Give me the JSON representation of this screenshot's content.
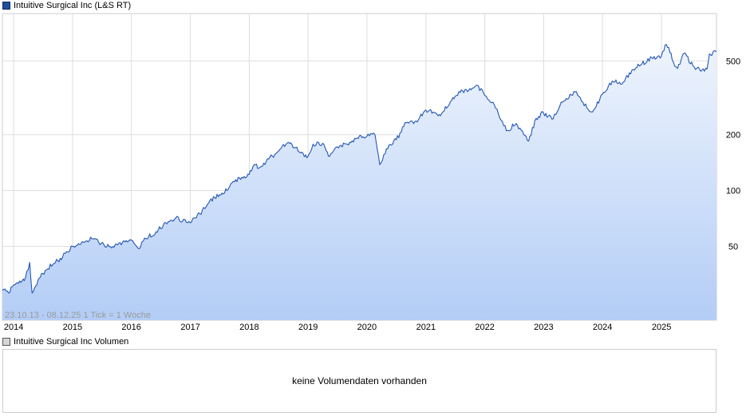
{
  "legend": {
    "main_label": "Intuitive Surgical Inc (L&S RT)",
    "volume_label": "Intuitive Surgical Inc Volumen"
  },
  "range_text": "23.10.13 - 08.12.25   1 Tick = 1 Woche",
  "volume": {
    "message": "keine Volumendaten vorhanden"
  },
  "colors": {
    "line": "#2457b3",
    "fill_top": "#eef4fd",
    "fill_bottom": "#b3cdf6",
    "grid": "#dddddd"
  },
  "chart_data": {
    "type": "area",
    "scale": "log",
    "title": "Intuitive Surgical Inc (L&S RT)",
    "period": "23.10.13 - 08.12.25",
    "tick": "1 Tick = 1 Woche",
    "x_ticks": [
      "2014",
      "2015",
      "2016",
      "2017",
      "2018",
      "2019",
      "2020",
      "2021",
      "2022",
      "2023",
      "2024",
      "2025"
    ],
    "y_ticks": [
      50,
      100,
      200,
      500
    ],
    "ylim": [
      20,
      900
    ],
    "grid": true,
    "series": [
      {
        "name": "Intuitive Surgical Inc (L&S RT)",
        "points": [
          [
            "2013-10-23",
            29
          ],
          [
            "2013-12-01",
            28
          ],
          [
            "2014-01-01",
            31
          ],
          [
            "2014-02-15",
            32
          ],
          [
            "2014-03-15",
            34
          ],
          [
            "2014-04-10",
            41
          ],
          [
            "2014-04-25",
            28
          ],
          [
            "2014-06-01",
            33
          ],
          [
            "2014-07-15",
            37
          ],
          [
            "2014-09-01",
            40
          ],
          [
            "2014-11-01",
            44
          ],
          [
            "2014-12-31",
            50
          ],
          [
            "2015-03-01",
            53
          ],
          [
            "2015-05-01",
            55
          ],
          [
            "2015-07-15",
            51
          ],
          [
            "2015-09-01",
            49
          ],
          [
            "2015-10-15",
            52
          ],
          [
            "2015-12-31",
            54
          ],
          [
            "2016-02-10",
            49
          ],
          [
            "2016-04-01",
            55
          ],
          [
            "2016-06-01",
            60
          ],
          [
            "2016-08-01",
            67
          ],
          [
            "2016-10-01",
            71
          ],
          [
            "2016-12-31",
            67
          ],
          [
            "2017-03-01",
            75
          ],
          [
            "2017-05-01",
            88
          ],
          [
            "2017-07-01",
            95
          ],
          [
            "2017-09-01",
            105
          ],
          [
            "2017-11-01",
            117
          ],
          [
            "2017-12-31",
            122
          ],
          [
            "2018-02-01",
            138
          ],
          [
            "2018-03-01",
            132
          ],
          [
            "2018-05-01",
            148
          ],
          [
            "2018-07-01",
            163
          ],
          [
            "2018-09-01",
            182
          ],
          [
            "2018-10-15",
            170
          ],
          [
            "2018-12-25",
            150
          ],
          [
            "2019-02-01",
            178
          ],
          [
            "2019-04-01",
            180
          ],
          [
            "2019-05-15",
            153
          ],
          [
            "2019-07-01",
            172
          ],
          [
            "2019-09-01",
            178
          ],
          [
            "2019-11-01",
            192
          ],
          [
            "2019-12-31",
            196
          ],
          [
            "2020-02-20",
            200
          ],
          [
            "2020-03-20",
            138
          ],
          [
            "2020-05-01",
            168
          ],
          [
            "2020-07-01",
            188
          ],
          [
            "2020-09-01",
            232
          ],
          [
            "2020-11-01",
            237
          ],
          [
            "2020-12-31",
            272
          ],
          [
            "2021-02-15",
            265
          ],
          [
            "2021-04-01",
            253
          ],
          [
            "2021-06-01",
            301
          ],
          [
            "2021-08-01",
            338
          ],
          [
            "2021-10-01",
            355
          ],
          [
            "2021-11-15",
            370
          ],
          [
            "2022-01-01",
            325
          ],
          [
            "2022-03-01",
            290
          ],
          [
            "2022-05-15",
            210
          ],
          [
            "2022-07-15",
            230
          ],
          [
            "2022-09-30",
            185
          ],
          [
            "2022-11-15",
            245
          ],
          [
            "2022-12-31",
            262
          ],
          [
            "2023-03-01",
            244
          ],
          [
            "2023-04-20",
            300
          ],
          [
            "2023-07-15",
            340
          ],
          [
            "2023-09-01",
            300
          ],
          [
            "2023-10-30",
            265
          ],
          [
            "2023-12-31",
            330
          ],
          [
            "2024-03-01",
            390
          ],
          [
            "2024-05-01",
            375
          ],
          [
            "2024-07-01",
            445
          ],
          [
            "2024-09-01",
            480
          ],
          [
            "2024-11-01",
            520
          ],
          [
            "2024-12-31",
            530
          ],
          [
            "2025-01-24",
            610
          ],
          [
            "2025-02-15",
            590
          ],
          [
            "2025-03-15",
            495
          ],
          [
            "2025-04-10",
            455
          ],
          [
            "2025-05-20",
            550
          ],
          [
            "2025-07-15",
            470
          ],
          [
            "2025-09-01",
            440
          ],
          [
            "2025-10-10",
            452
          ],
          [
            "2025-10-25",
            545
          ],
          [
            "2025-12-08",
            560
          ]
        ]
      }
    ]
  }
}
